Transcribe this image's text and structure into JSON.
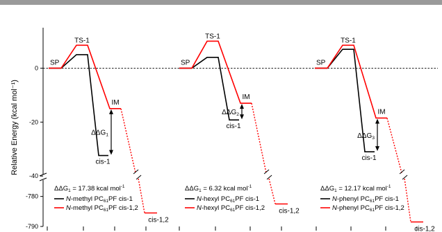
{
  "chart_data": {
    "type": "line",
    "ylabel": "Relative Energy (kcal mol⁻¹)",
    "yticks": [
      {
        "value": 0,
        "label": "0"
      },
      {
        "value": -20,
        "label": "-20"
      },
      {
        "value": -40,
        "label": "-40"
      },
      {
        "value": -780,
        "label": "-780"
      },
      {
        "value": -790,
        "label": "-790"
      }
    ],
    "axis_break": {
      "lower_from": -790,
      "lower_to": -775,
      "upper_from": -42,
      "upper_to": 15
    },
    "colors": {
      "cis1_series": "#000000",
      "cis12_series": "#ff0000",
      "zero_line": "#000000"
    },
    "panels": [
      {
        "stage_labels": {
          "sp": "SP",
          "ts": "TS-1",
          "im": "IM",
          "cis1": "cis-1",
          "cis12": "cis-1,2"
        },
        "delta_label_main": "ΔΔG",
        "delta_label_sub": "1",
        "delta_text_main": "ΔΔG",
        "delta_text_sub": "1",
        "delta_text_rest": " = 17.38 kcal mol",
        "delta_text_sup": "-1",
        "legend": [
          {
            "prefix": "N",
            "main": "-methyl PC",
            "sub": "61",
            "rest": "PF cis-1"
          },
          {
            "prefix": "N",
            "main": "-methyl PC",
            "sub": "61",
            "rest": "PF cis-1,2"
          }
        ],
        "series_black": {
          "sp": 0,
          "ts": 5,
          "cis1": -32.4
        },
        "series_red": {
          "sp": 0,
          "ts": 8.5,
          "im": -15.0,
          "cis12": -785.5
        }
      },
      {
        "stage_labels": {
          "sp": "SP",
          "ts": "TS-1",
          "im": "IM",
          "cis1": "cis-1",
          "cis12": "cis-1,2"
        },
        "delta_label_main": "ΔΔG",
        "delta_label_sub": "2",
        "delta_text_main": "ΔΔG",
        "delta_text_sub": "1",
        "delta_text_rest": " = 6.32 kcal mol",
        "delta_text_sup": "-1",
        "legend": [
          {
            "prefix": "N",
            "main": "-hexyl PC",
            "sub": "61",
            "rest": "PF cis-1"
          },
          {
            "prefix": "N",
            "main": "-hexyl PC",
            "sub": "61",
            "rest": "PF cis-1,2"
          }
        ],
        "series_black": {
          "sp": 0,
          "ts": 4,
          "cis1": -19.2
        },
        "series_red": {
          "sp": 0,
          "ts": 10,
          "im": -13.0,
          "cis12": -782.5
        }
      },
      {
        "stage_labels": {
          "sp": "SP",
          "ts": "TS-1",
          "im": "IM",
          "cis1": "cis-1",
          "cis12": "cis-1,2"
        },
        "delta_label_main": "ΔΔG",
        "delta_label_sub": "3",
        "delta_text_main": "ΔΔG",
        "delta_text_sub": "1",
        "delta_text_rest": " = 12.17 kcal mol",
        "delta_text_sup": "-1",
        "legend": [
          {
            "prefix": "N",
            "main": "-phenyl PC",
            "sub": "61",
            "rest": "PF cis-1"
          },
          {
            "prefix": "N",
            "main": "-phenyl PC",
            "sub": "61",
            "rest": "PF cis-1,2"
          }
        ],
        "series_black": {
          "sp": 0,
          "ts": 7,
          "cis1": -31.0
        },
        "series_red": {
          "sp": 0,
          "ts": 8.5,
          "im": -18.5,
          "cis12": -788.5
        }
      }
    ]
  }
}
